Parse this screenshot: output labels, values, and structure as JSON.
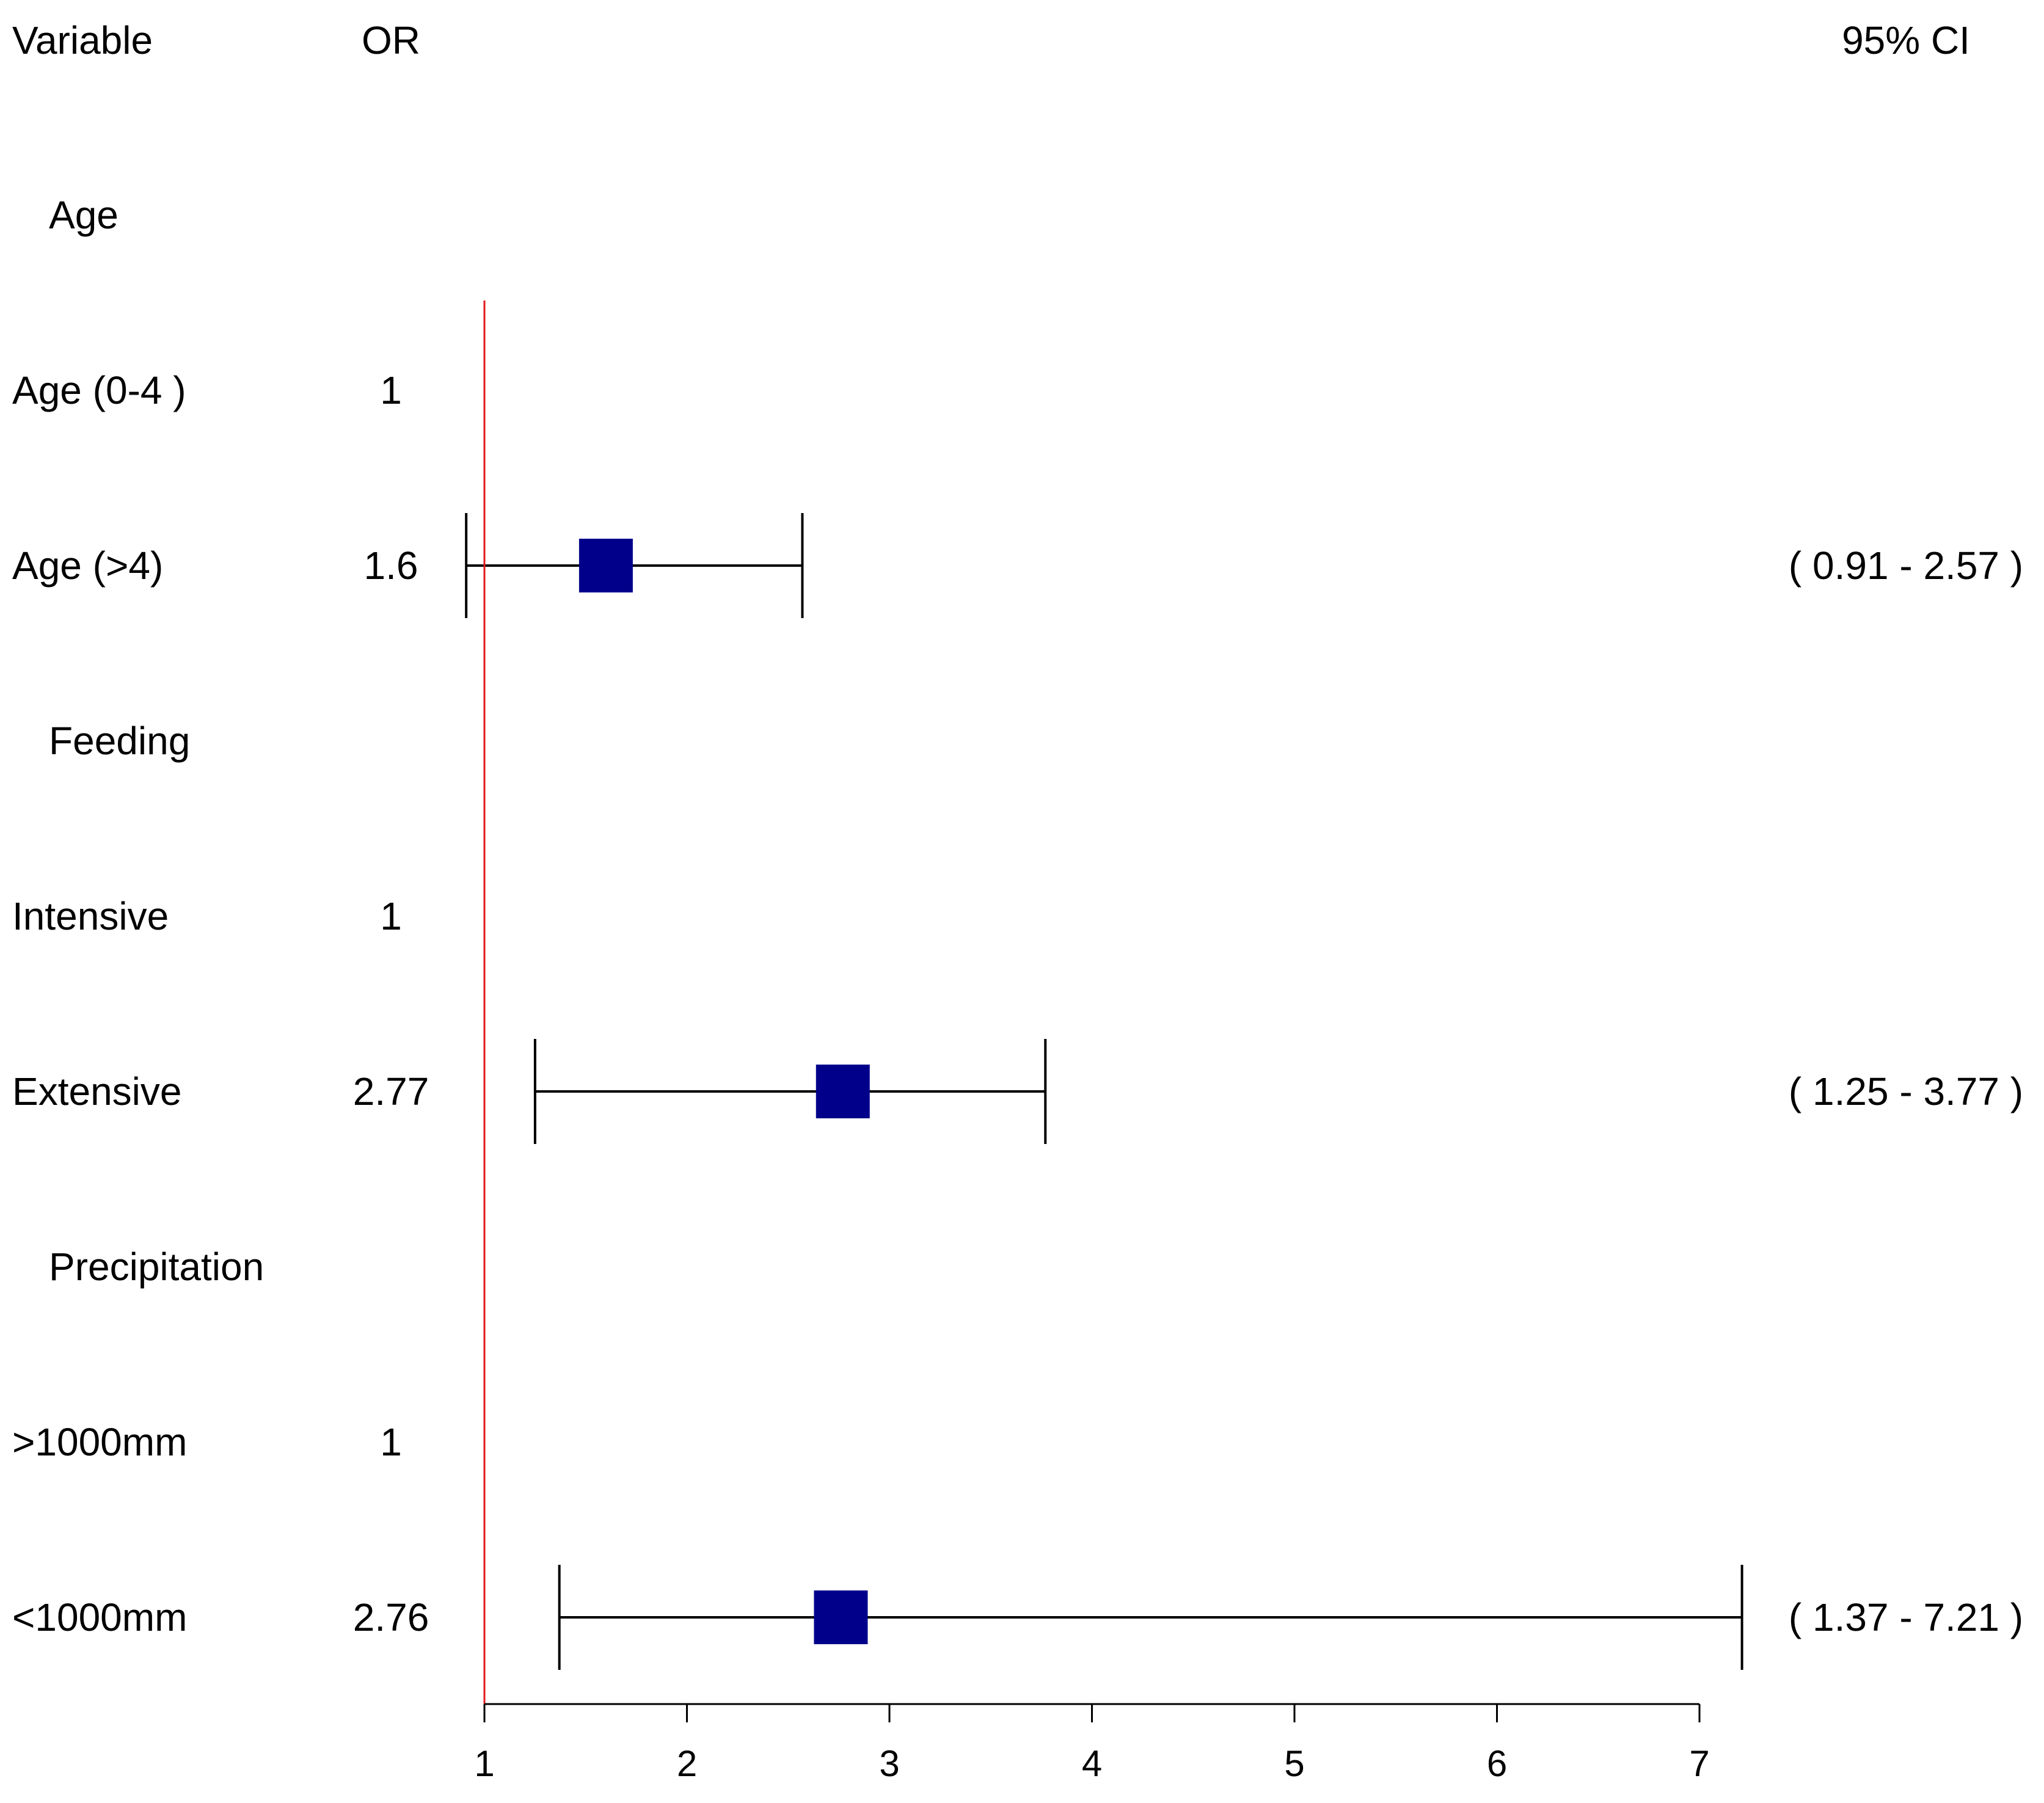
{
  "chart_data": {
    "type": "forest",
    "headers": {
      "variable": "Variable",
      "or": "OR",
      "ci": "95% CI"
    },
    "reference_line": 1,
    "rows": [
      {
        "kind": "group",
        "label": "Age",
        "or_label": "",
        "ci_label": "",
        "or": null,
        "lo": null,
        "hi": null
      },
      {
        "kind": "item",
        "label": "Age (0-4 )",
        "or_label": "1",
        "ci_label": "",
        "or": null,
        "lo": null,
        "hi": null
      },
      {
        "kind": "item",
        "label": "Age (>4)",
        "or_label": "1.6",
        "ci_label": "( 0.91 - 2.57 )",
        "or": 1.6,
        "lo": 0.91,
        "hi": 2.57
      },
      {
        "kind": "group",
        "label": "Feeding",
        "or_label": "",
        "ci_label": "",
        "or": null,
        "lo": null,
        "hi": null
      },
      {
        "kind": "item",
        "label": "Intensive",
        "or_label": "1",
        "ci_label": "",
        "or": null,
        "lo": null,
        "hi": null
      },
      {
        "kind": "item",
        "label": "Extensive",
        "or_label": "2.77",
        "ci_label": "( 1.25 - 3.77 )",
        "or": 2.77,
        "lo": 1.25,
        "hi": 3.77
      },
      {
        "kind": "group",
        "label": "Precipitation",
        "or_label": "",
        "ci_label": "",
        "or": null,
        "lo": null,
        "hi": null
      },
      {
        "kind": "item",
        "label": ">1000mm",
        "or_label": "1",
        "ci_label": "",
        "or": null,
        "lo": null,
        "hi": null
      },
      {
        "kind": "item",
        "label": "<1000mm",
        "or_label": "2.76",
        "ci_label": "( 1.37 - 7.21 )",
        "or": 2.76,
        "lo": 1.37,
        "hi": 7.21
      }
    ],
    "x_axis": {
      "ticks": [
        1,
        2,
        3,
        4,
        5,
        6,
        7
      ],
      "tick_labels": [
        "1",
        "2",
        "3",
        "4",
        "5",
        "6",
        "7"
      ],
      "range": [
        1,
        7
      ]
    },
    "colors": {
      "marker": "#00008B",
      "reference": "#E31A1C",
      "line": "#000000"
    }
  }
}
